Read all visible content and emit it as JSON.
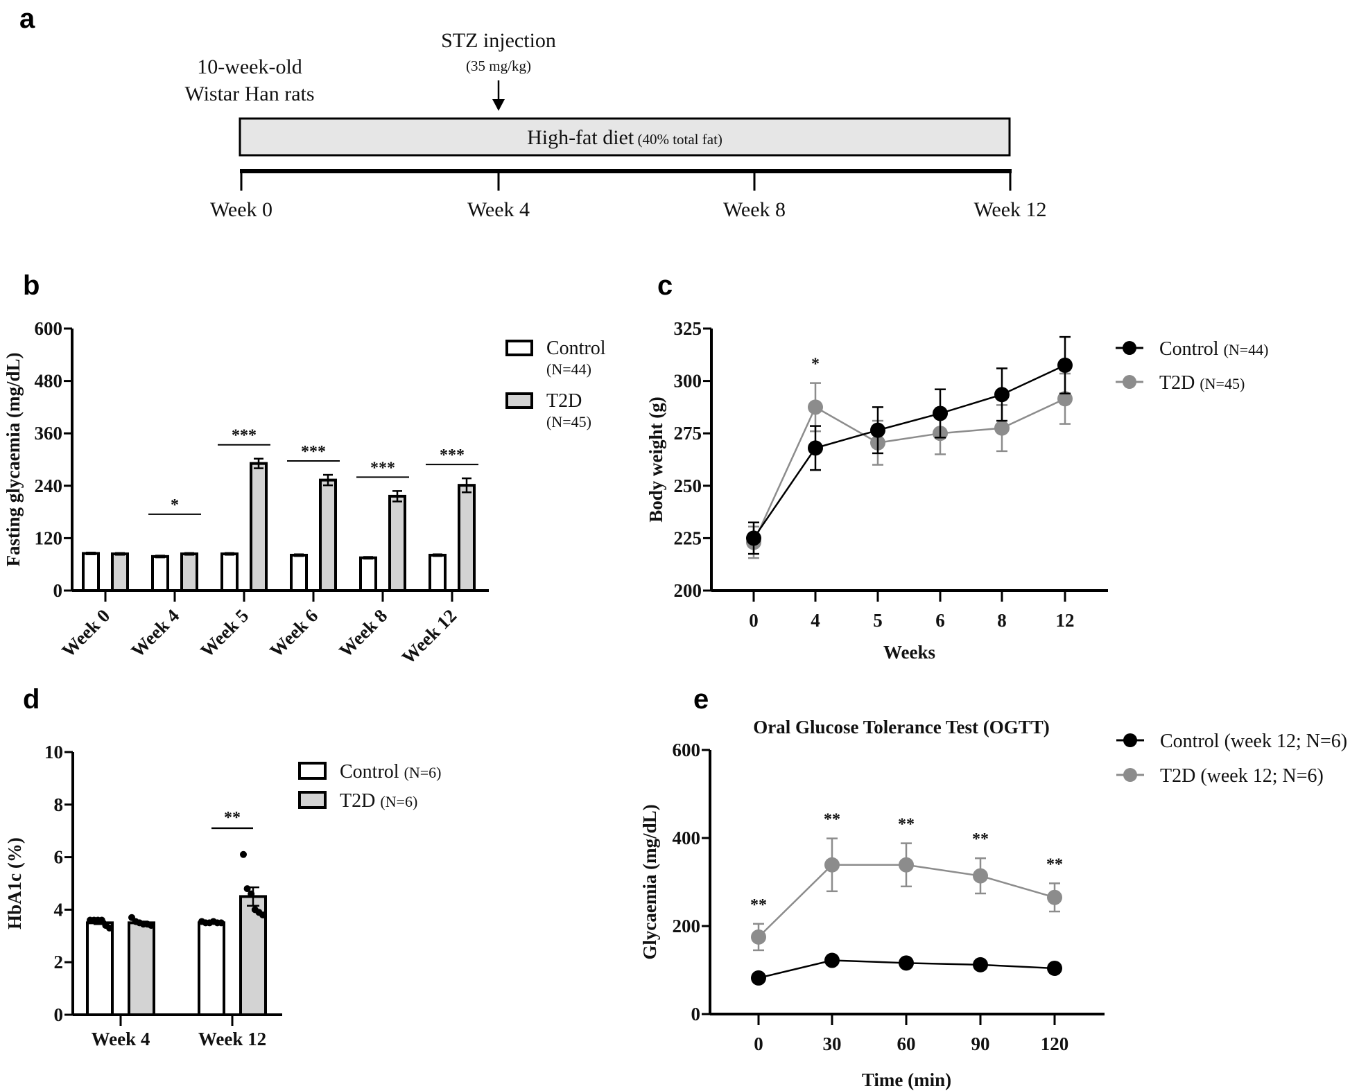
{
  "colors": {
    "control_line": "#000000",
    "t2d_line": "#8c8c8c",
    "control_fill": "#ffffff",
    "t2d_fill": "#d3d3d3",
    "diet_box_fill": "#e6e6e6",
    "axis": "#000000"
  },
  "panel_a": {
    "label": "a",
    "animals_line1": "10-week-old",
    "animals_line2": "Wistar Han rats",
    "injection_title": "STZ injection",
    "injection_dose": "(35 mg/kg)",
    "diet_main": "High-fat diet",
    "diet_detail": " (40% total fat)",
    "timeline": [
      "Week 0",
      "Week 4",
      "Week 8",
      "Week 12"
    ]
  },
  "chart_data": [
    {
      "panel": "b",
      "type": "bar",
      "title": "",
      "xlabel": "",
      "ylabel": "Fasting glycaemia (mg/dL)",
      "ylim": [
        0,
        600
      ],
      "yticks": [
        0,
        120,
        240,
        360,
        480,
        600
      ],
      "categories": [
        "Week 0",
        "Week 4",
        "Week 5",
        "Week 6",
        "Week 8",
        "Week 12"
      ],
      "legend_position": "top-right",
      "series": [
        {
          "name": "Control",
          "legend_n": "(N=44)",
          "values": [
            85,
            78,
            84,
            81,
            75,
            81
          ],
          "errors": [
            2,
            2,
            2,
            2,
            2,
            2
          ]
        },
        {
          "name": "T2D",
          "legend_n": "(N=45)",
          "values": [
            84,
            84,
            291,
            253,
            216,
            241
          ],
          "errors": [
            2,
            2,
            11,
            12,
            12,
            16
          ]
        }
      ],
      "significance": [
        "",
        "*",
        "***",
        "***",
        "***",
        "***"
      ]
    },
    {
      "panel": "c",
      "type": "line",
      "title": "",
      "xlabel": "Weeks",
      "ylabel": "Body weight (g)",
      "ylim": [
        200,
        325
      ],
      "yticks": [
        200,
        225,
        250,
        275,
        300,
        325
      ],
      "x": [
        "0",
        "4",
        "5",
        "6",
        "8",
        "12"
      ],
      "legend_position": "top-right",
      "series": [
        {
          "name": "Control",
          "legend_n": "(N=44)",
          "values": [
            225,
            268,
            276.5,
            284.5,
            293.5,
            307.5
          ],
          "errors": [
            7.5,
            10.5,
            11,
            11.5,
            12.5,
            13.5
          ]
        },
        {
          "name": "T2D",
          "legend_n": "(N=45)",
          "values": [
            223,
            287.5,
            270.5,
            275,
            277.5,
            291.5
          ],
          "errors": [
            7.5,
            11.5,
            10.5,
            10,
            11,
            12
          ]
        }
      ],
      "significance": [
        "",
        "*",
        "",
        "",
        "",
        ""
      ]
    },
    {
      "panel": "d",
      "type": "bar",
      "title": "",
      "xlabel": "",
      "ylabel": "HbA1c (%)",
      "ylim": [
        0,
        10
      ],
      "yticks": [
        0,
        2,
        4,
        6,
        8,
        10
      ],
      "categories": [
        "Week 4",
        "Week 12"
      ],
      "legend_position": "top-right",
      "series": [
        {
          "name": "Control",
          "legend_n": "(N=6)",
          "values": [
            3.5,
            3.5
          ],
          "errors": [
            0.05,
            0.03
          ],
          "points": [
            [
              3.6,
              3.6,
              3.6,
              3.6,
              3.4,
              3.3
            ],
            [
              3.55,
              3.5,
              3.5,
              3.55,
              3.5,
              3.5
            ]
          ]
        },
        {
          "name": "T2D",
          "legend_n": "(N=6)",
          "values": [
            3.5,
            4.5
          ],
          "errors": [
            0.05,
            0.35
          ],
          "points": [
            [
              3.7,
              3.55,
              3.5,
              3.45,
              3.45,
              3.4
            ],
            [
              6.1,
              4.8,
              4.6,
              4.0,
              3.9,
              3.8
            ]
          ]
        }
      ],
      "significance": [
        "",
        "**"
      ]
    },
    {
      "panel": "e",
      "type": "line",
      "title": "Oral Glucose Tolerance Test (OGTT)",
      "xlabel": "Time (min)",
      "ylabel": "Glycaemia (mg/dL)",
      "ylim": [
        0,
        600
      ],
      "yticks": [
        0,
        200,
        400,
        600
      ],
      "x": [
        "0",
        "30",
        "60",
        "90",
        "120"
      ],
      "legend_position": "top-right",
      "series": [
        {
          "name": "Control",
          "legend_n": "(week 12; N=6)",
          "values": [
            82,
            122,
            116,
            112,
            104
          ],
          "errors": [
            3,
            3,
            3,
            3,
            3
          ]
        },
        {
          "name": "T2D",
          "legend_n": "(week 12; N=6)",
          "values": [
            175,
            339,
            339,
            314,
            265
          ],
          "errors": [
            30,
            60,
            49,
            40,
            32
          ]
        }
      ],
      "significance": [
        "**",
        "**",
        "**",
        "**",
        "**"
      ]
    }
  ],
  "panel_labels": [
    "b",
    "c",
    "d",
    "e"
  ]
}
